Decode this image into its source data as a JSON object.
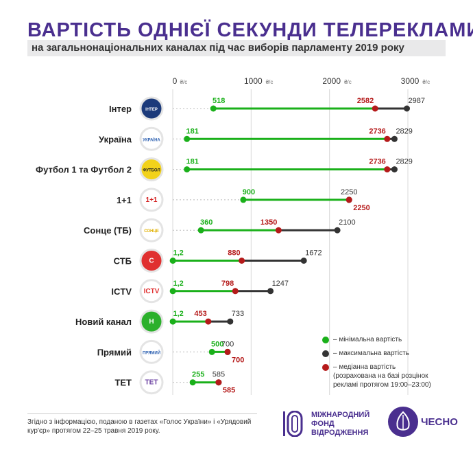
{
  "title": "ВАРТІСТЬ ОДНІЄЇ СЕКУНДИ ТЕЛЕРЕКЛАМИ",
  "subtitle": "на загальнонаціональних каналах під час виборів парламенту 2019 року",
  "colors": {
    "min": "#1ab01a",
    "max": "#333333",
    "median": "#b51a1a",
    "brand": "#4a2f8f"
  },
  "chart_data": {
    "type": "dumbbell",
    "axis_unit": "₴/с",
    "x_ticks": [
      0,
      1000,
      2000,
      3000
    ],
    "xlim": [
      0,
      3000
    ],
    "channels": [
      {
        "name": "Інтер",
        "logo_text": "ІНТЕР",
        "logo_bg": "#1c3a7a",
        "logo_fg": "#ffffff",
        "min": 518,
        "median": 2582,
        "max": 2987,
        "min_label": "518",
        "median_label": "2582",
        "max_label": "2987"
      },
      {
        "name": "Україна",
        "logo_text": "УКРАЇНА",
        "logo_bg": "#ffffff",
        "logo_fg": "#2b5fb0",
        "min": 181,
        "median": 2736,
        "max": 2829,
        "min_label": "181",
        "median_label": "2736",
        "max_label": "2829"
      },
      {
        "name": "Футбол 1 та Футбол 2",
        "logo_text": "ФУТБОЛ",
        "logo_bg": "#f2d21b",
        "logo_fg": "#222222",
        "min": 181,
        "median": 2736,
        "max": 2829,
        "min_label": "181",
        "median_label": "2736",
        "max_label": "2829"
      },
      {
        "name": "1+1",
        "logo_text": "1+1",
        "logo_bg": "#ffffff",
        "logo_fg": "#d32020",
        "min": 900,
        "median": 2250,
        "max": 2250,
        "min_label": "900",
        "median_label": "2250",
        "max_label": "2250"
      },
      {
        "name": "Сонце (ТБ)",
        "logo_text": "СОНЦЕ",
        "logo_bg": "#ffffff",
        "logo_fg": "#e0b000",
        "min": 360,
        "median": 1350,
        "max": 2100,
        "min_label": "360",
        "median_label": "1350",
        "max_label": "2100"
      },
      {
        "name": "СТБ",
        "logo_text": "С",
        "logo_bg": "#e03030",
        "logo_fg": "#ffffff",
        "min": 1.2,
        "median": 880,
        "max": 1672,
        "min_label": "1,2",
        "median_label": "880",
        "max_label": "1672"
      },
      {
        "name": "ICTV",
        "logo_text": "ICTV",
        "logo_bg": "#ffffff",
        "logo_fg": "#e03030",
        "min": 1.2,
        "median": 798,
        "max": 1247,
        "min_label": "1,2",
        "median_label": "798",
        "max_label": "1247"
      },
      {
        "name": "Новий канал",
        "logo_text": "Н",
        "logo_bg": "#2bb02b",
        "logo_fg": "#ffffff",
        "min": 1.2,
        "median": 453,
        "max": 733,
        "min_label": "1,2",
        "median_label": "453",
        "max_label": "733"
      },
      {
        "name": "Прямий",
        "logo_text": "ПРЯМИЙ",
        "logo_bg": "#ffffff",
        "logo_fg": "#2b5fb0",
        "min": 500,
        "median": 700,
        "max": 700,
        "min_label": "500",
        "median_label": "700",
        "max_label": "700"
      },
      {
        "name": "ТЕТ",
        "logo_text": "ТЕТ",
        "logo_bg": "#ffffff",
        "logo_fg": "#6a3fa0",
        "min": 255,
        "median": 585,
        "max": 585,
        "min_label": "255",
        "median_label": "585",
        "max_label": "585"
      }
    ]
  },
  "legend": {
    "min_label": "– мінімальна вартість",
    "max_label": "– максимальна вартість",
    "median_label": "– медіанна вартість",
    "median_note": "(розрахована на базі розцінок рекламі протягом 19:00–23:00)"
  },
  "footnote": "Згідно з інформацією, поданою в газетах «Голос України» і «Урядовий кур'єр» протягом 22–25 травня 2019 року.",
  "fund_name": [
    "МІЖНАРОДНИЙ",
    "ФОНД",
    "ВІДРОДЖЕННЯ"
  ],
  "chesno_name": "ЧЕСНО"
}
